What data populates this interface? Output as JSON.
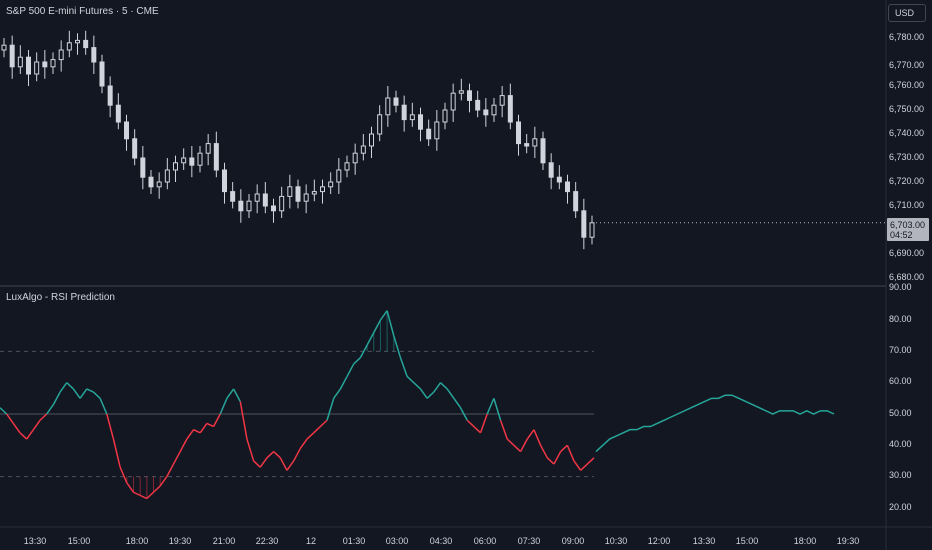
{
  "header": {
    "symbol_title": "S&P 500 E-mini Futures · 5 · CME",
    "currency_button": "USD"
  },
  "indicator": {
    "title": "LuxAlgo - RSI Prediction"
  },
  "price_tag": {
    "price": "6,703.00",
    "countdown": "04:52"
  },
  "colors": {
    "background": "#131722",
    "candle": "#d1d4dc",
    "rsi_bull": "#26a69a",
    "rsi_bear": "#f23645",
    "separator": "#434651"
  },
  "price_axis": {
    "labels": [
      "6,780.00",
      "6,770.00",
      "6,760.00",
      "6,750.00",
      "6,740.00",
      "6,730.00",
      "6,720.00",
      "6,710.00",
      "6,690.00",
      "6,680.00"
    ]
  },
  "rsi_axis": {
    "labels": [
      "90.00",
      "80.00",
      "70.00",
      "60.00",
      "50.00",
      "40.00",
      "30.00",
      "20.00"
    ]
  },
  "time_axis": {
    "labels": [
      "13:30",
      "15:00",
      "18:00",
      "19:30",
      "21:00",
      "22:30",
      "12",
      "01:30",
      "03:00",
      "04:30",
      "06:00",
      "07:30",
      "09:00",
      "10:30",
      "12:00",
      "13:30",
      "15:00",
      "18:00",
      "19:30"
    ]
  },
  "chart_data": [
    {
      "type": "candlestick",
      "title": "S&P 500 E-mini Futures · 5 · CME",
      "ylim": [
        6680,
        6785
      ],
      "closes_approx": [
        6777,
        6768,
        6772,
        6765,
        6770,
        6768,
        6771,
        6775,
        6778,
        6779,
        6776,
        6770,
        6760,
        6752,
        6745,
        6738,
        6730,
        6722,
        6718,
        6720,
        6725,
        6728,
        6730,
        6727,
        6732,
        6736,
        6725,
        6716,
        6712,
        6708,
        6712,
        6715,
        6710,
        6708,
        6714,
        6718,
        6712,
        6715,
        6716,
        6718,
        6720,
        6725,
        6728,
        6732,
        6735,
        6740,
        6748,
        6755,
        6752,
        6746,
        6748,
        6742,
        6738,
        6745,
        6750,
        6757,
        6758,
        6754,
        6750,
        6748,
        6752,
        6756,
        6745,
        6736,
        6735,
        6738,
        6728,
        6722,
        6720,
        6716,
        6708,
        6697,
        6703
      ],
      "last_price": 6703.0
    },
    {
      "type": "line",
      "title": "LuxAlgo - RSI Prediction",
      "ylim": [
        15,
        90
      ],
      "levels": [
        30,
        50,
        70
      ],
      "rsi_approx": [
        52,
        50,
        47,
        44,
        42,
        45,
        48,
        50,
        53,
        57,
        60,
        58,
        55,
        58,
        57,
        55,
        50,
        42,
        33,
        28,
        25,
        24,
        23,
        25,
        27,
        30,
        34,
        38,
        42,
        45,
        44,
        47,
        46,
        50,
        55,
        58,
        54,
        42,
        35,
        33,
        36,
        38,
        36,
        32,
        35,
        39,
        42,
        44,
        46,
        48,
        55,
        58,
        62,
        66,
        68,
        72,
        76,
        80,
        83,
        75,
        68,
        62,
        60,
        58,
        55,
        57,
        60,
        58,
        55,
        52,
        48,
        46,
        44,
        50,
        55,
        48,
        42,
        40,
        38,
        42,
        45,
        40,
        36,
        34,
        38,
        40,
        35,
        32,
        34,
        36
      ],
      "prediction_approx": [
        38,
        40,
        42,
        43,
        44,
        45,
        45,
        46,
        46,
        47,
        48,
        49,
        50,
        51,
        52,
        53,
        54,
        55,
        55,
        56,
        56,
        55,
        54,
        53,
        52,
        51,
        50,
        51,
        51,
        51,
        50,
        51,
        50,
        51,
        51,
        50
      ]
    }
  ]
}
